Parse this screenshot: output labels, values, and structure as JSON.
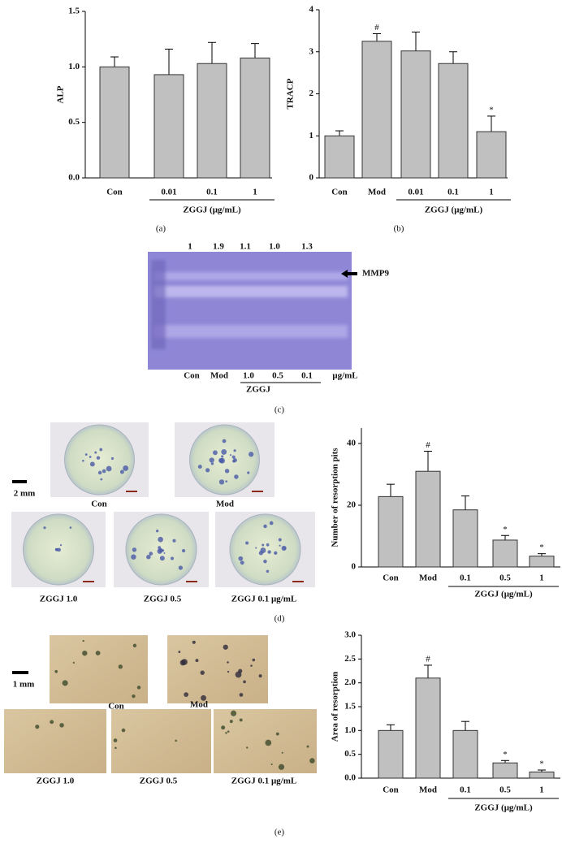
{
  "chart_data": [
    {
      "type": "bar",
      "y_label": "ALP",
      "categories": [
        "Con",
        "0.01",
        "0.1",
        "1"
      ],
      "values": [
        1.0,
        0.93,
        1.03,
        1.08
      ],
      "errors": [
        0.09,
        0.23,
        0.19,
        0.13
      ],
      "markers": [
        null,
        null,
        null,
        null
      ],
      "color": "#c0c0c0",
      "ylim": [
        0,
        1.5
      ],
      "yticks": [
        {
          "value": 0,
          "label": "0.0"
        },
        {
          "value": 0.5,
          "label": "0.5"
        },
        {
          "value": 1,
          "label": "1.0"
        },
        {
          "value": 1.5,
          "label": "1.5"
        }
      ],
      "group_label": "ZGGJ (μg/mL)"
    },
    {
      "type": "bar",
      "y_label": "TRACP",
      "categories": [
        "Con",
        "Mod",
        "0.01",
        "0.1",
        "1"
      ],
      "values": [
        1.0,
        3.25,
        3.02,
        2.72,
        1.1
      ],
      "errors": [
        0.12,
        0.18,
        0.45,
        0.28,
        0.37
      ],
      "markers": [
        null,
        "#",
        null,
        null,
        "*"
      ],
      "color": "#c0c0c0",
      "ylim": [
        0,
        4
      ],
      "yticks": [
        0,
        1,
        2,
        3,
        4
      ],
      "group_label": "ZGGJ (μg/mL)"
    },
    {
      "type": "bar",
      "y_label": "Number of resorption pits",
      "categories": [
        "Con",
        "Mod",
        "0.1",
        "0.5",
        "1"
      ],
      "values": [
        22.8,
        31,
        18.5,
        8.7,
        3.5
      ],
      "errors": [
        4,
        6.5,
        4.5,
        1.5,
        0.8
      ],
      "markers": [
        null,
        "#",
        null,
        "*",
        "*"
      ],
      "color": "#c0c0c0",
      "ylim": [
        0,
        45
      ],
      "yticks": [
        0,
        20,
        40
      ],
      "group_label": "ZGGJ (μg/mL)"
    },
    {
      "type": "bar",
      "y_label": "Area of resorption",
      "categories": [
        "Con",
        "Mod",
        "0.1",
        "0.5",
        "1"
      ],
      "values": [
        1.0,
        2.1,
        1.0,
        0.32,
        0.13
      ],
      "errors": [
        0.12,
        0.27,
        0.19,
        0.05,
        0.04
      ],
      "markers": [
        null,
        "#",
        null,
        "*",
        "*"
      ],
      "color": "#c0c0c0",
      "ylim": [
        0,
        3
      ],
      "yticks": [
        {
          "value": 0,
          "label": "0.0"
        },
        {
          "value": 0.5,
          "label": "0.5"
        },
        {
          "value": 1,
          "label": "1.0"
        },
        {
          "value": 1.5,
          "label": "1.5"
        },
        {
          "value": 2,
          "label": "2.0"
        },
        {
          "value": 2.5,
          "label": "2.5"
        },
        {
          "value": 3,
          "label": "3.0"
        }
      ],
      "group_label": "ZGGJ (μg/mL)"
    }
  ],
  "panel_labels": [
    "(a)",
    "(b)",
    "(c)",
    "(d)",
    "(e)"
  ],
  "gel": {
    "intensities": [
      "1",
      "1.9",
      "1.1",
      "1.0",
      "1.3"
    ],
    "lanes": [
      "Con",
      "Mod",
      "1.0",
      "0.5",
      "0.1"
    ],
    "unit": "μg/mL",
    "group": "ZGGJ",
    "band": "MMP9"
  },
  "photos_d": {
    "labels": [
      "Con",
      "Mod",
      "ZGGJ 1.0",
      "ZGGJ 0.5",
      "ZGGJ 0.1 μg/mL"
    ],
    "scale": "2 mm"
  },
  "photos_e": {
    "labels": [
      "Con",
      "Mod",
      "ZGGJ 1.0",
      "ZGGJ 0.5",
      "ZGGJ 0.1 μg/mL"
    ],
    "scale": "1 mm"
  }
}
